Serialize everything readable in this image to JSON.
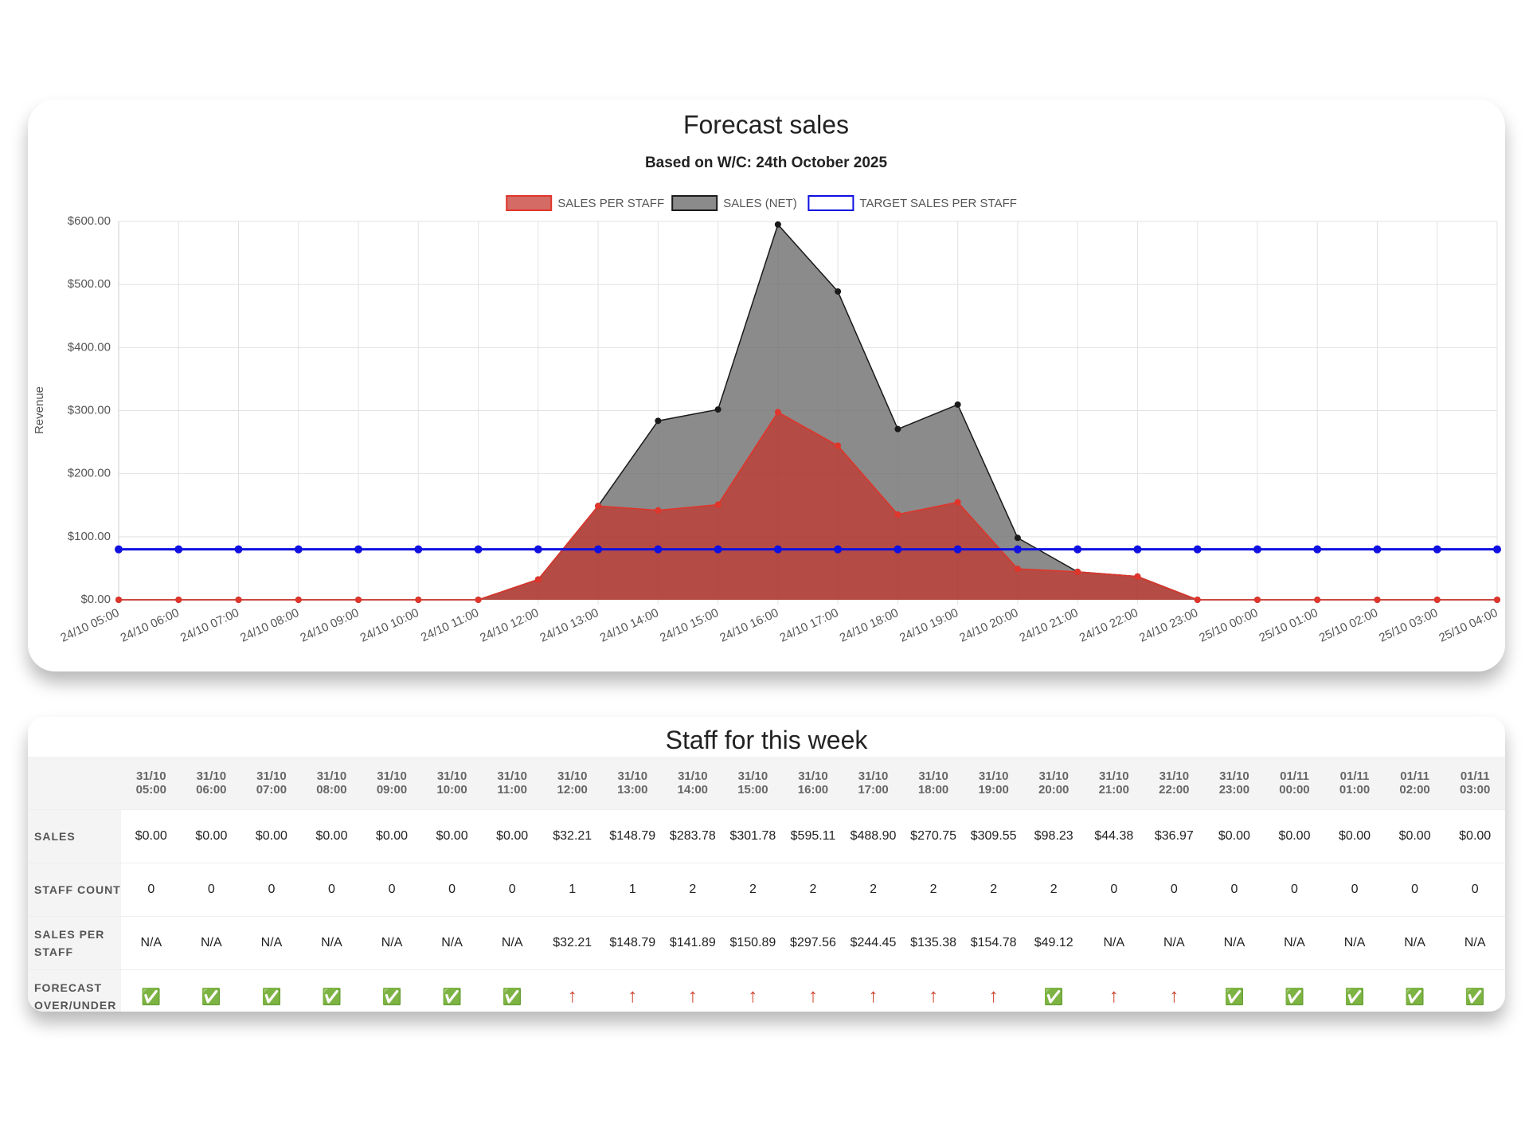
{
  "chart_data": {
    "type": "line",
    "title": "Forecast sales",
    "subtitle": "Based on W/C: 24th October 2025",
    "y_label": "Revenue",
    "categories": [
      "24/10 05:00",
      "24/10 06:00",
      "24/10 07:00",
      "24/10 08:00",
      "24/10 09:00",
      "24/10 10:00",
      "24/10 11:00",
      "24/10 12:00",
      "24/10 13:00",
      "24/10 14:00",
      "24/10 15:00",
      "24/10 16:00",
      "24/10 17:00",
      "24/10 18:00",
      "24/10 19:00",
      "24/10 20:00",
      "24/10 21:00",
      "24/10 22:00",
      "24/10 23:00",
      "25/10 00:00",
      "25/10 01:00",
      "25/10 02:00",
      "25/10 03:00",
      "25/10 04:00"
    ],
    "series": [
      {
        "name": "SALES PER STAFF",
        "color": "#e0352b",
        "fill": "rgba(196,50,40,0.72)",
        "values": [
          0,
          0,
          0,
          0,
          0,
          0,
          0,
          32.21,
          148.79,
          141.89,
          150.89,
          297.56,
          244.45,
          135.38,
          154.78,
          49.12,
          44.38,
          36.97,
          0,
          0,
          0,
          0,
          0,
          0
        ]
      },
      {
        "name": "SALES (NET)",
        "color": "#1a1a1a",
        "fill": "rgba(110,110,110,0.8)",
        "values": [
          0,
          0,
          0,
          0,
          0,
          0,
          0,
          32.21,
          148.79,
          283.78,
          301.78,
          595.11,
          488.9,
          270.75,
          309.55,
          98.23,
          44.38,
          36.97,
          0,
          0,
          0,
          0,
          0,
          0
        ]
      },
      {
        "name": "TARGET SALES PER STAFF",
        "color": "#1010e0",
        "fill": null,
        "values": [
          80,
          80,
          80,
          80,
          80,
          80,
          80,
          80,
          80,
          80,
          80,
          80,
          80,
          80,
          80,
          80,
          80,
          80,
          80,
          80,
          80,
          80,
          80,
          80
        ]
      }
    ],
    "ylim": [
      0,
      600
    ],
    "yticks": [
      {
        "value": 0,
        "label": "$0.00"
      },
      {
        "value": 100,
        "label": "$100.00"
      },
      {
        "value": 200,
        "label": "$200.00"
      },
      {
        "value": 300,
        "label": "$300.00"
      },
      {
        "value": 400,
        "label": "$400.00"
      },
      {
        "value": 500,
        "label": "$500.00"
      },
      {
        "value": 600,
        "label": "$600.00"
      }
    ],
    "grid": true,
    "legend": "top"
  },
  "table": {
    "title": "Staff for this week",
    "columns": [
      "31/10\n05:00",
      "31/10\n06:00",
      "31/10\n07:00",
      "31/10\n08:00",
      "31/10\n09:00",
      "31/10\n10:00",
      "31/10\n11:00",
      "31/10\n12:00",
      "31/10\n13:00",
      "31/10\n14:00",
      "31/10\n15:00",
      "31/10\n16:00",
      "31/10\n17:00",
      "31/10\n18:00",
      "31/10\n19:00",
      "31/10\n20:00",
      "31/10\n21:00",
      "31/10\n22:00",
      "31/10\n23:00",
      "01/11\n00:00",
      "01/11\n01:00",
      "01/11\n02:00",
      "01/11\n03:00"
    ],
    "rows": [
      {
        "label": "SALES",
        "cells": [
          "$0.00",
          "$0.00",
          "$0.00",
          "$0.00",
          "$0.00",
          "$0.00",
          "$0.00",
          "$32.21",
          "$148.79",
          "$283.78",
          "$301.78",
          "$595.11",
          "$488.90",
          "$270.75",
          "$309.55",
          "$98.23",
          "$44.38",
          "$36.97",
          "$0.00",
          "$0.00",
          "$0.00",
          "$0.00",
          "$0.00"
        ]
      },
      {
        "label": "STAFF COUNT",
        "cells": [
          "0",
          "0",
          "0",
          "0",
          "0",
          "0",
          "0",
          "1",
          "1",
          "2",
          "2",
          "2",
          "2",
          "2",
          "2",
          "2",
          "0",
          "0",
          "0",
          "0",
          "0",
          "0",
          "0"
        ]
      },
      {
        "label": "SALES PER STAFF",
        "cells": [
          "N/A",
          "N/A",
          "N/A",
          "N/A",
          "N/A",
          "N/A",
          "N/A",
          "$32.21",
          "$148.79",
          "$141.89",
          "$150.89",
          "$297.56",
          "$244.45",
          "$135.38",
          "$154.78",
          "$49.12",
          "N/A",
          "N/A",
          "N/A",
          "N/A",
          "N/A",
          "N/A",
          "N/A"
        ]
      },
      {
        "label": "FORECAST OVER/UNDER",
        "cells": [
          "✅",
          "✅",
          "✅",
          "✅",
          "✅",
          "✅",
          "✅",
          "↑",
          "↑",
          "↑",
          "↑",
          "↑",
          "↑",
          "↑",
          "↑",
          "✅",
          "↑",
          "↑",
          "✅",
          "✅",
          "✅",
          "✅",
          "✅"
        ]
      }
    ]
  }
}
